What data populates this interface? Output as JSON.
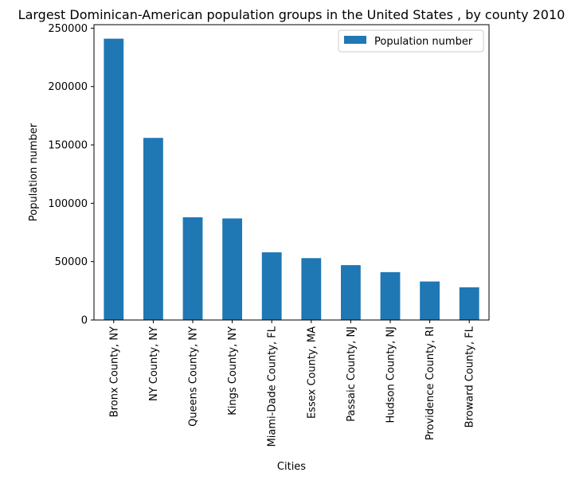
{
  "chart_data": {
    "type": "bar",
    "title": "Largest Dominican-American population groups in the United States , by county 2010",
    "xlabel": "Cities",
    "ylabel": "Population number",
    "categories": [
      "Bronx County, NY",
      "NY County, NY",
      "Queens County, NY",
      "Kings County, NY",
      "Miami-Dade County, FL",
      "Essex County, MA",
      "Passaic County, NJ",
      "Hudson County, NJ",
      "Providence County, RI",
      "Broward County, FL"
    ],
    "series": [
      {
        "name": "Population number",
        "values": [
          241000,
          156000,
          88000,
          87000,
          58000,
          53000,
          47000,
          41000,
          33000,
          28000
        ]
      }
    ],
    "ylim": [
      0,
      253000
    ],
    "yticks": [
      0,
      50000,
      100000,
      150000,
      200000,
      250000
    ],
    "ytick_labels": [
      "0",
      "50000",
      "100000",
      "150000",
      "200000",
      "250000"
    ],
    "legend_position": "top-right",
    "grid": false,
    "bar_color": "#1f77b4"
  }
}
